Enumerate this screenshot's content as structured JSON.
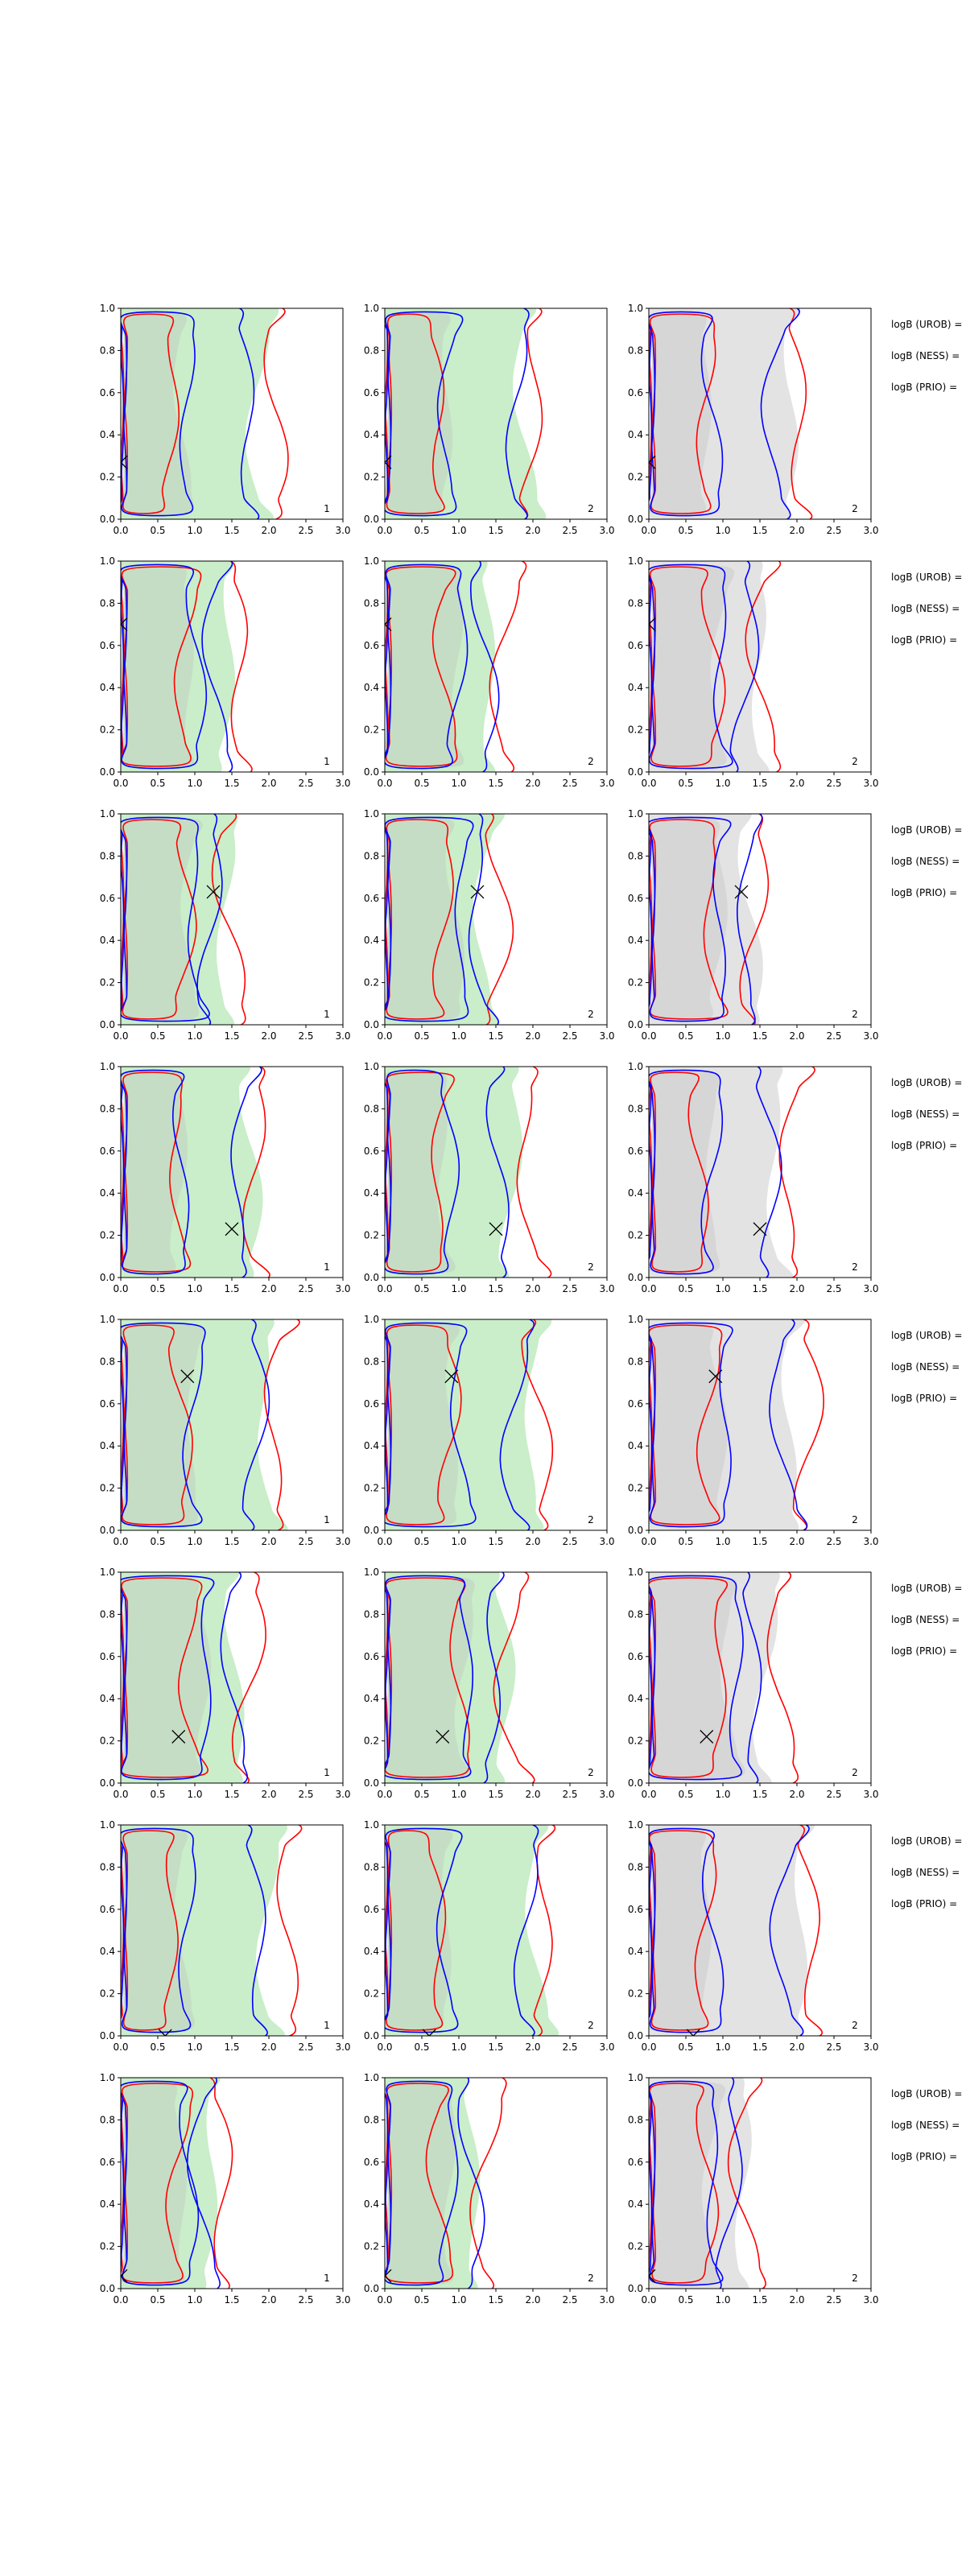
{
  "colors": {
    "series_blue": "#0000ff",
    "series_red": "#ff0000",
    "fill_green": "#b7e8b7",
    "fill_grey": "#d9d9d9",
    "marker": "#000000"
  },
  "chart_data": {
    "type": "contour",
    "layout": {
      "rows": 8,
      "cols": 3
    },
    "xlim": [
      0,
      3
    ],
    "ylim": [
      0,
      1
    ],
    "xticks": [
      "0.0",
      "0.5",
      "1.0",
      "1.5",
      "2.0",
      "2.5",
      "3.0"
    ],
    "yticks": [
      "0.0",
      "0.2",
      "0.4",
      "0.6",
      "0.8",
      "1.0"
    ],
    "grid": false,
    "row_labels": [
      "logB (UROB) =",
      "logB (NESS) =",
      "logB (PRIO) ="
    ],
    "panel_tags": [
      "1",
      "2",
      "2"
    ],
    "column_fill": [
      "green",
      "green",
      "grey"
    ],
    "rows": [
      {
        "marker": [
          0.0,
          0.27
        ],
        "extent": 2.6
      },
      {
        "marker": [
          0.0,
          0.7
        ],
        "extent": 2.0
      },
      {
        "marker": [
          1.25,
          0.63
        ],
        "extent": 1.9
      },
      {
        "marker": [
          1.5,
          0.23
        ],
        "extent": 2.4
      },
      {
        "marker": [
          0.9,
          0.73
        ],
        "extent": 2.7
      },
      {
        "marker": [
          0.78,
          0.22
        ],
        "extent": 2.2
      },
      {
        "marker": [
          0.6,
          0.0
        ],
        "extent": 2.8
      },
      {
        "marker": [
          0.0,
          0.06
        ],
        "extent": 1.7
      }
    ]
  }
}
